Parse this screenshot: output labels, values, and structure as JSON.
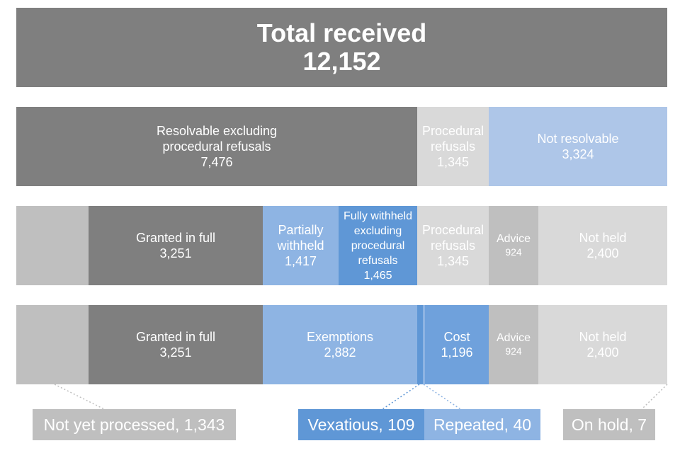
{
  "total": {
    "label": "Total received",
    "value": "12,152"
  },
  "row1": {
    "resolvable": {
      "line1": "Resolvable excluding",
      "line2": "procedural refusals",
      "value": "7,476"
    },
    "procedural": {
      "line1": "Procedural",
      "line2": "refusals",
      "value": "1,345"
    },
    "not_resolvable": {
      "label": "Not resolvable",
      "value": "3,324"
    }
  },
  "row2": {
    "granted": {
      "label": "Granted in full",
      "value": "3,251"
    },
    "partially": {
      "line1": "Partially",
      "line2": "withheld",
      "value": "1,417"
    },
    "fully": {
      "line1": "Fully withheld",
      "line2": "excluding",
      "line3": "procedural",
      "line4": "refusals",
      "value": "1,465"
    },
    "procedural": {
      "line1": "Procedural",
      "line2": "refusals",
      "value": "1,345"
    },
    "advice": {
      "label": "Advice",
      "value": "924"
    },
    "not_held": {
      "label": "Not held",
      "value": "2,400"
    }
  },
  "row3": {
    "granted": {
      "label": "Granted in full",
      "value": "3,251"
    },
    "exemptions": {
      "label": "Exemptions",
      "value": "2,882"
    },
    "cost": {
      "label": "Cost",
      "value": "1,196"
    },
    "advice": {
      "label": "Advice",
      "value": "924"
    },
    "not_held": {
      "label": "Not held",
      "value": "2,400"
    }
  },
  "callouts": {
    "not_yet_processed": "Not yet processed, 1,343",
    "vexatious": "Vexatious, 109",
    "repeated": "Repeated, 40",
    "on_hold": "On hold, 7"
  },
  "colors": {
    "dark_grey": "#7f7f7f",
    "mid_grey": "#bfbfbf",
    "light_grey": "#d9d9d9",
    "pale_blue": "#aec6e8",
    "blue": "#8eb4e3",
    "deep_blue": "#5f97d6"
  }
}
